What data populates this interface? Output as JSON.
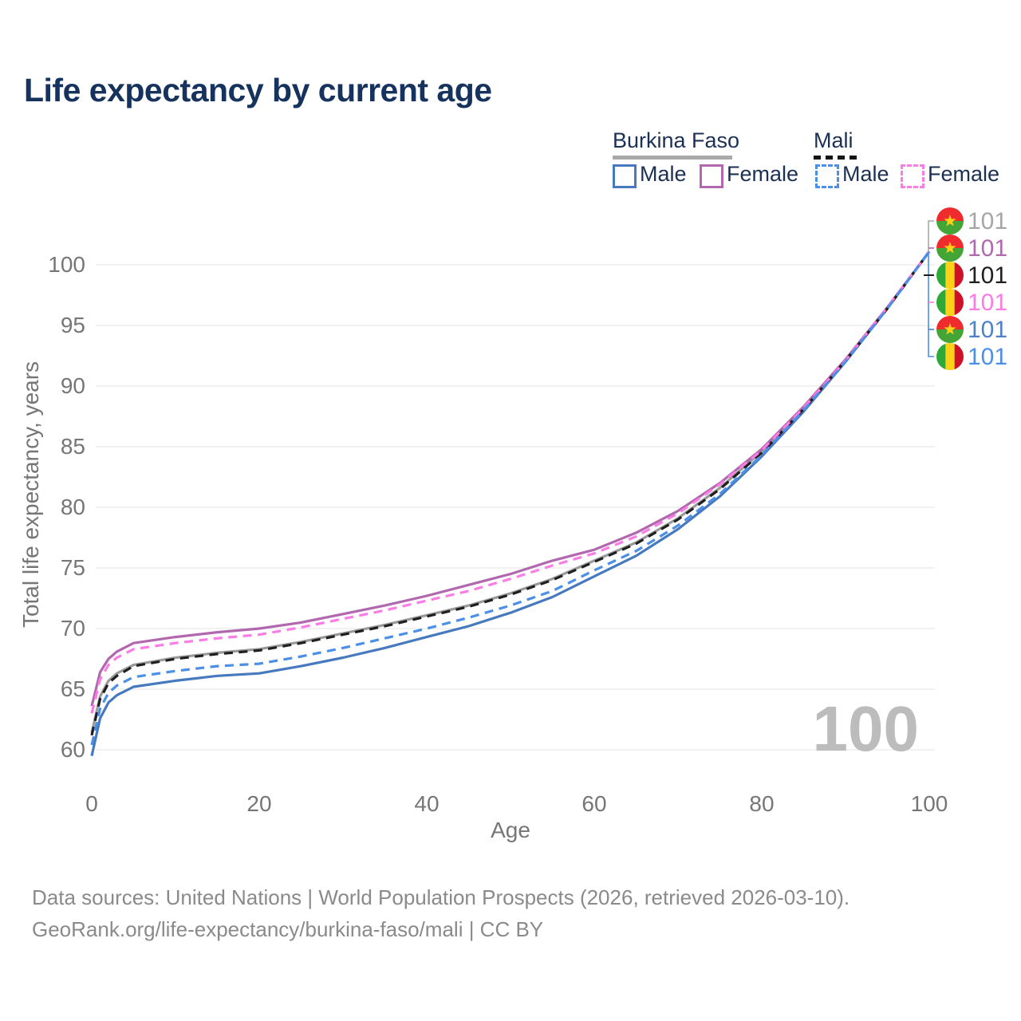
{
  "title": "Life expectancy by current age",
  "watermark_age": "100",
  "legend": {
    "groups": [
      {
        "id": "burkina-faso",
        "label": "Burkina Faso",
        "line_style": "solid",
        "underline_color": "#a9a9a9",
        "items": [
          {
            "label": "Male",
            "color": "#4679bd"
          },
          {
            "label": "Female",
            "color": "#b168ae"
          }
        ]
      },
      {
        "id": "mali",
        "label": "Mali",
        "line_style": "dashed",
        "underline_color": "#141414",
        "items": [
          {
            "label": "Male",
            "color": "#4b8fe6"
          },
          {
            "label": "Female",
            "color": "#fb7ce4"
          }
        ]
      }
    ]
  },
  "footer": {
    "line1": "Data sources: United Nations | World Population Prospects (2026, retrieved 2026-03-10).",
    "line2": "GeoRank.org/life-expectancy/burkina-faso/mali | CC BY"
  },
  "chart_data": {
    "type": "line",
    "title": "Life expectancy by current age",
    "xlabel": "Age",
    "ylabel": "Total life expectancy, years",
    "xlim": [
      0,
      100
    ],
    "ylim": [
      59,
      103
    ],
    "x_ticks": [
      0,
      20,
      40,
      60,
      80,
      100
    ],
    "y_ticks": [
      60,
      65,
      70,
      75,
      80,
      85,
      90,
      95,
      100
    ],
    "grid": "horizontal",
    "legend_position": "top-right",
    "ages": [
      0,
      1,
      2,
      3,
      5,
      10,
      15,
      20,
      25,
      30,
      35,
      40,
      45,
      50,
      55,
      60,
      65,
      70,
      75,
      80,
      85,
      90,
      95,
      100
    ],
    "series": [
      {
        "name": "Burkina Faso (both sexes)",
        "country": "Burkina Faso",
        "sex": "both",
        "flag": "burkina-faso",
        "color": "#9a9a9a",
        "dash": false,
        "end_value_label": "101",
        "values": [
          61.4,
          64.4,
          65.7,
          66.3,
          67.0,
          67.6,
          68.0,
          68.3,
          68.9,
          69.6,
          70.3,
          71.1,
          71.9,
          72.9,
          74.1,
          75.6,
          77.1,
          79.1,
          81.6,
          84.6,
          88.2,
          92.1,
          96.4,
          101.1
        ]
      },
      {
        "name": "Burkina Faso Female",
        "country": "Burkina Faso",
        "sex": "female",
        "flag": "burkina-faso",
        "color": "#b168ae",
        "dash": false,
        "end_value_label": "101",
        "values": [
          63.6,
          66.4,
          67.5,
          68.1,
          68.8,
          69.3,
          69.7,
          70.0,
          70.5,
          71.2,
          71.9,
          72.7,
          73.6,
          74.5,
          75.6,
          76.5,
          77.9,
          79.7,
          82.0,
          84.8,
          88.3,
          92.2,
          96.5,
          101.1
        ]
      },
      {
        "name": "Burkina Faso Male",
        "country": "Burkina Faso",
        "sex": "male",
        "flag": "burkina-faso",
        "color": "#4679bd",
        "dash": false,
        "end_value_label": "101",
        "values": [
          59.5,
          62.6,
          63.9,
          64.5,
          65.2,
          65.7,
          66.1,
          66.3,
          66.9,
          67.6,
          68.4,
          69.3,
          70.2,
          71.3,
          72.6,
          74.3,
          76.0,
          78.2,
          80.9,
          84.2,
          87.9,
          92.0,
          96.4,
          101.1
        ]
      },
      {
        "name": "Mali (both sexes)",
        "country": "Mali",
        "sex": "both",
        "flag": "mali",
        "color": "#1f1f1f",
        "dash": true,
        "end_value_label": "101",
        "values": [
          61.2,
          64.2,
          65.5,
          66.1,
          66.9,
          67.5,
          67.9,
          68.2,
          68.8,
          69.5,
          70.2,
          71.0,
          71.8,
          72.8,
          74.0,
          75.5,
          77.0,
          79.0,
          81.5,
          84.5,
          88.1,
          92.1,
          96.4,
          101.1
        ]
      },
      {
        "name": "Mali Female",
        "country": "Mali",
        "sex": "female",
        "flag": "mali",
        "color": "#fb7ce4",
        "dash": true,
        "end_value_label": "101",
        "values": [
          63.0,
          65.8,
          67.0,
          67.6,
          68.3,
          68.8,
          69.2,
          69.5,
          70.1,
          70.8,
          71.5,
          72.3,
          73.1,
          74.1,
          75.2,
          76.2,
          77.6,
          79.5,
          81.9,
          84.7,
          88.2,
          92.1,
          96.5,
          101.1
        ]
      },
      {
        "name": "Mali Male",
        "country": "Mali",
        "sex": "male",
        "flag": "mali",
        "color": "#4b8fe6",
        "dash": true,
        "end_value_label": "101",
        "values": [
          60.4,
          63.4,
          64.7,
          65.3,
          66.0,
          66.5,
          66.9,
          67.1,
          67.7,
          68.4,
          69.2,
          70.0,
          70.9,
          71.9,
          73.1,
          74.8,
          76.4,
          78.5,
          81.1,
          84.3,
          88.0,
          92.0,
          96.4,
          101.1
        ]
      }
    ],
    "end_labels_top_to_bottom": [
      {
        "series": "Burkina Faso (both sexes)",
        "flag": "burkina-faso",
        "text": "101",
        "color": "#a6a6a6"
      },
      {
        "series": "Burkina Faso Female",
        "flag": "burkina-faso",
        "text": "101",
        "color": "#b168ae"
      },
      {
        "series": "Mali (both sexes)",
        "flag": "mali",
        "text": "101",
        "color": "#1f1f1f"
      },
      {
        "series": "Mali Female",
        "flag": "mali",
        "text": "101",
        "color": "#fb7ce4"
      },
      {
        "series": "Burkina Faso Male",
        "flag": "burkina-faso",
        "text": "101",
        "color": "#4f81c6"
      },
      {
        "series": "Mali Male",
        "flag": "mali",
        "text": "101",
        "color": "#4b8fe6"
      }
    ],
    "flag_colors": {
      "burkina-faso": {
        "top_red": "#EF2B2D",
        "bottom_green": "#43A535",
        "star_yellow": "#FCD116"
      },
      "mali": {
        "green": "#2EA836",
        "yellow": "#FCD116",
        "red": "#CE1126"
      }
    },
    "grid_color": "#ebebeb",
    "axis_text_color": "#767676",
    "watermark_color": "#bcbcbc"
  }
}
